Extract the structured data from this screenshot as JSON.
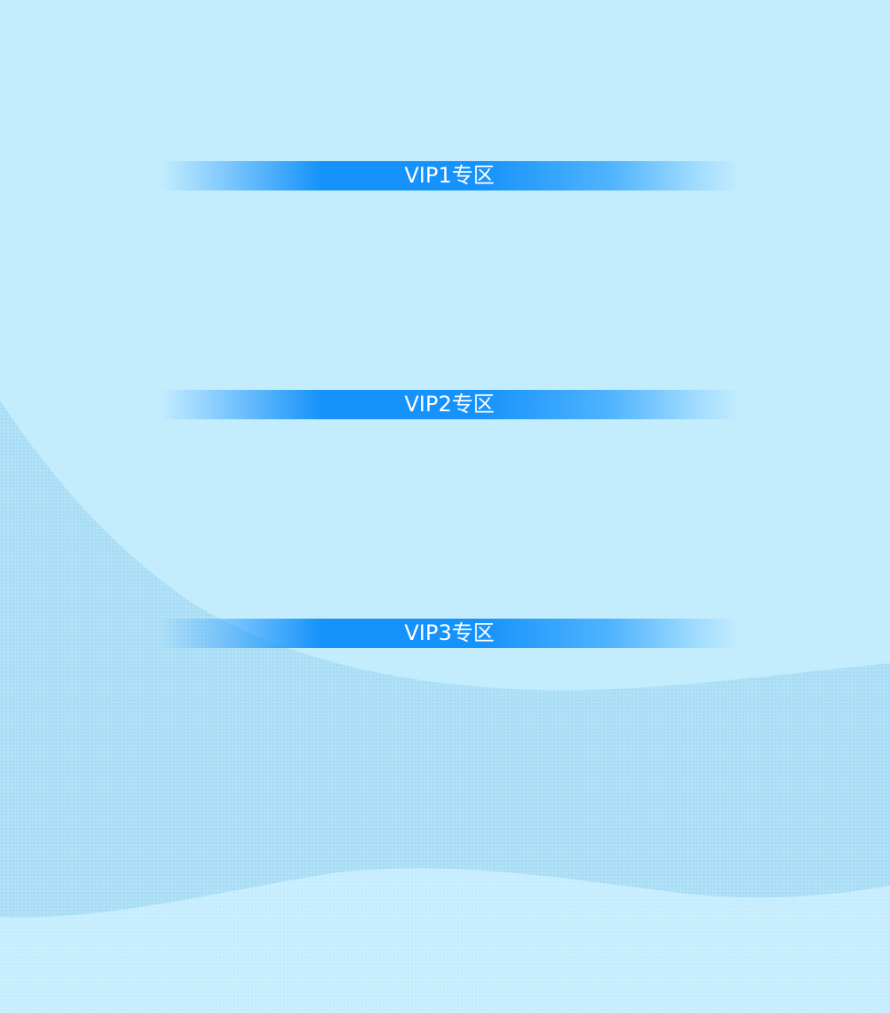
{
  "theme": {
    "background": "#c3ecfd",
    "wave_mid": "#acdff7",
    "wave_bottom": "#c9eefe",
    "banner_color": "#1592fb",
    "banner_text_color": "#ffffff"
  },
  "sections": [
    {
      "label": "VIP1专区"
    },
    {
      "label": "VIP2专区"
    },
    {
      "label": "VIP3专区"
    }
  ]
}
